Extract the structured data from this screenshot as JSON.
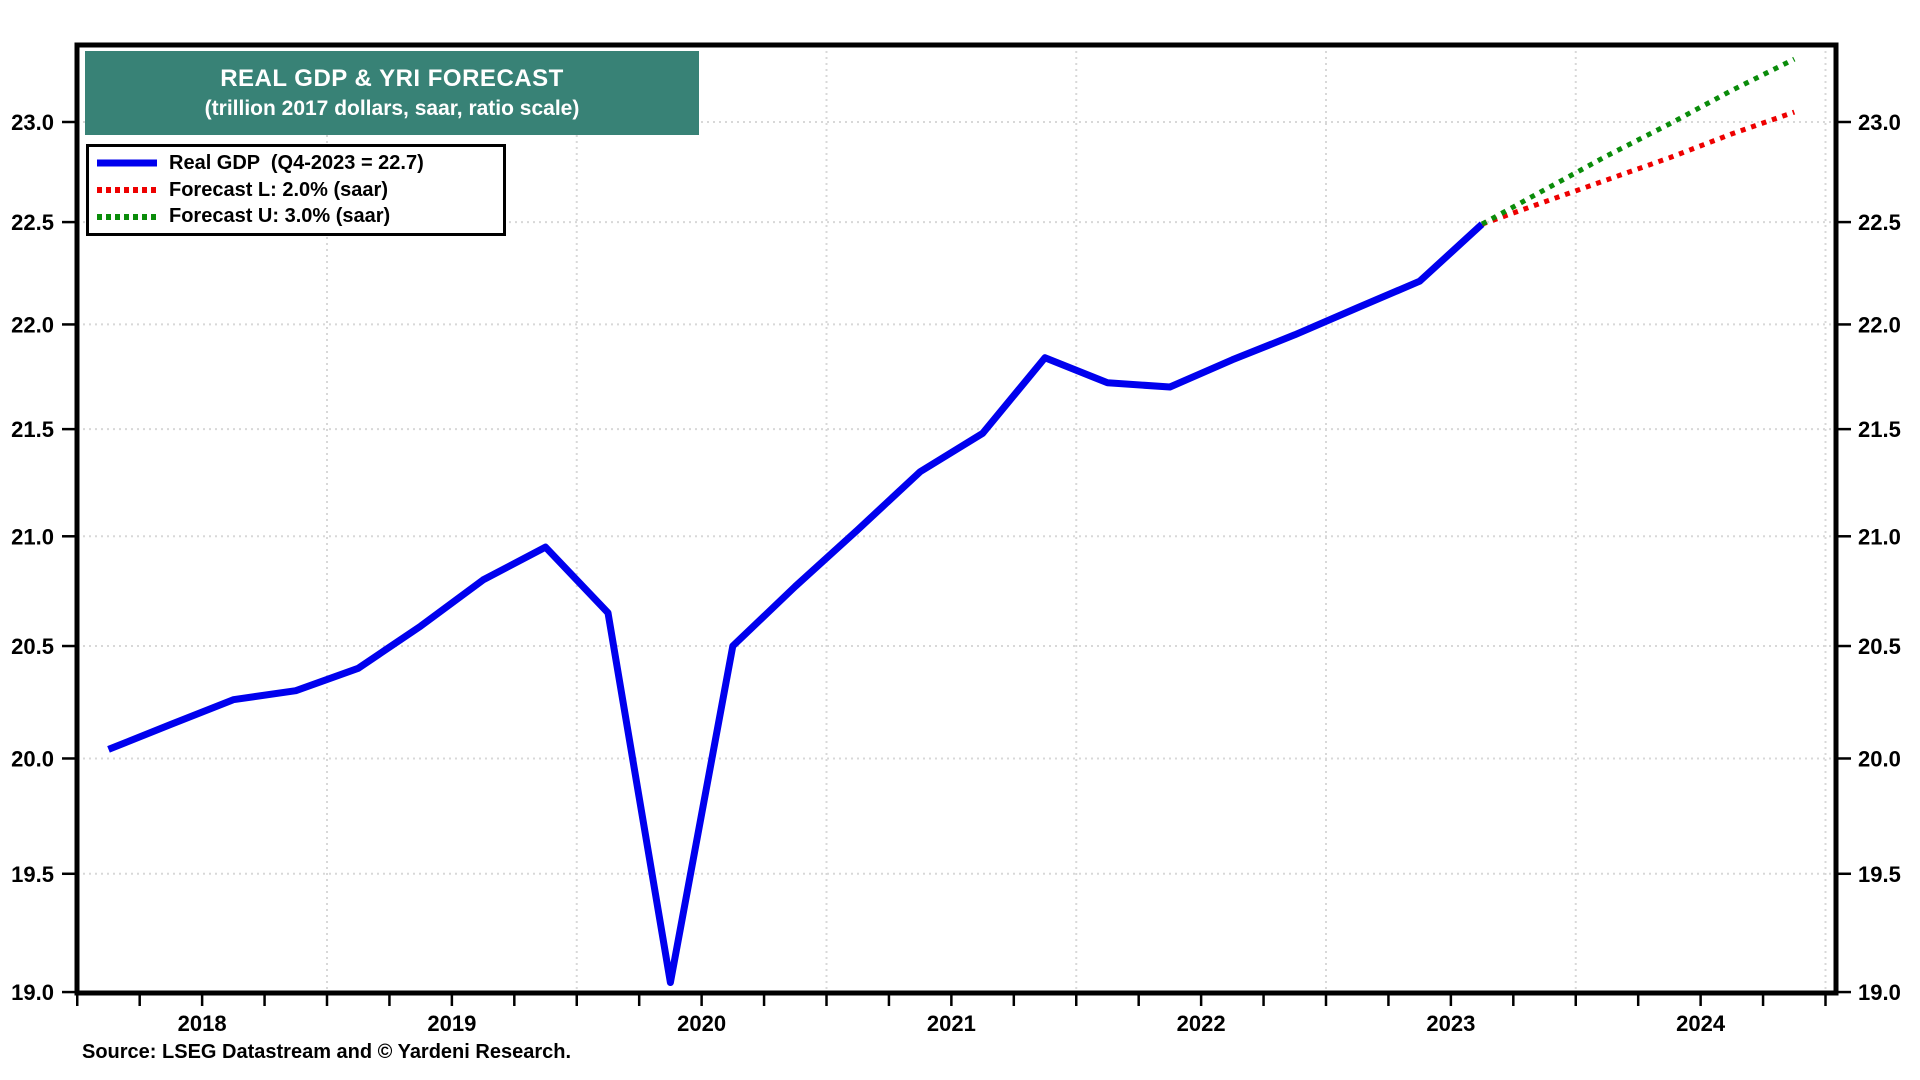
{
  "header": {
    "title": "REAL GDP & YRI FORECAST",
    "subtitle": "(trillion 2017 dollars, saar, ratio scale)",
    "bg_color": "#388276",
    "text_color": "#ffffff"
  },
  "source": {
    "text": "Source: LSEG Datastream and © Yardeni Research."
  },
  "chart_data": {
    "type": "line",
    "title": "REAL GDP & YRI FORECAST",
    "subtitle": "(trillion 2017 dollars, saar, ratio scale)",
    "y_axis": {
      "scale": "ratio (log)",
      "ticks": [
        23.0,
        22.5,
        22.0,
        21.5,
        21.0,
        20.5,
        20.0,
        19.5,
        19.0
      ],
      "range": [
        18.99,
        23.39
      ],
      "label_sides": "both"
    },
    "x_axis": {
      "range_years": [
        2018.0,
        2025.0
      ],
      "year_labels": [
        "2018",
        "2019",
        "2020",
        "2021",
        "2022",
        "2023",
        "2024"
      ],
      "gridline_years": [
        2019,
        2020,
        2021,
        2022,
        2023,
        2024,
        2025
      ],
      "minor_ticks": "quarterly"
    },
    "grid": {
      "on": true,
      "color": "#d8d8d8",
      "style": "dotted"
    },
    "frame_color": "#000000",
    "legend_position": "top-left",
    "series": [
      {
        "name": "Real GDP",
        "legend_label": "Real GDP  (Q4-2023 = 22.7)",
        "color": "#0000ee",
        "style": "solid",
        "points": [
          [
            "2018-Q1",
            20.04
          ],
          [
            "2018-Q2",
            20.15
          ],
          [
            "2018-Q3",
            20.26
          ],
          [
            "2018-Q4",
            20.3
          ],
          [
            "2019-Q1",
            20.4
          ],
          [
            "2019-Q2",
            20.59
          ],
          [
            "2019-Q3",
            20.8
          ],
          [
            "2019-Q4",
            20.95
          ],
          [
            "2020-Q1",
            20.65
          ],
          [
            "2020-Q2",
            19.04
          ],
          [
            "2020-Q3",
            20.5
          ],
          [
            "2020-Q4",
            20.77
          ],
          [
            "2021-Q1",
            21.03
          ],
          [
            "2021-Q2",
            21.3
          ],
          [
            "2021-Q3",
            21.48
          ],
          [
            "2021-Q4",
            21.84
          ],
          [
            "2022-Q1",
            21.72
          ],
          [
            "2022-Q2",
            21.7
          ],
          [
            "2022-Q3",
            21.83
          ],
          [
            "2022-Q4",
            21.95
          ],
          [
            "2023-Q1",
            22.08
          ],
          [
            "2023-Q2",
            22.21
          ],
          [
            "2023-Q3",
            22.49
          ]
        ]
      },
      {
        "name": "Forecast L",
        "legend_label": "Forecast L: 2.0% (saar)",
        "color": "#ee0000",
        "style": "dotted",
        "points": [
          [
            "2023-Q3",
            22.49
          ],
          [
            "2023-Q4",
            22.6
          ],
          [
            "2024-Q1",
            22.71
          ],
          [
            "2024-Q2",
            22.82
          ],
          [
            "2024-Q3",
            22.94
          ],
          [
            "2024-Q4",
            23.05
          ]
        ]
      },
      {
        "name": "Forecast U",
        "legend_label": "Forecast U: 3.0% (saar)",
        "color": "#0a8c0a",
        "style": "dotted",
        "points": [
          [
            "2023-Q3",
            22.49
          ],
          [
            "2023-Q4",
            22.66
          ],
          [
            "2024-Q1",
            22.83
          ],
          [
            "2024-Q2",
            22.99
          ],
          [
            "2024-Q3",
            23.16
          ],
          [
            "2024-Q4",
            23.32
          ]
        ]
      }
    ]
  }
}
